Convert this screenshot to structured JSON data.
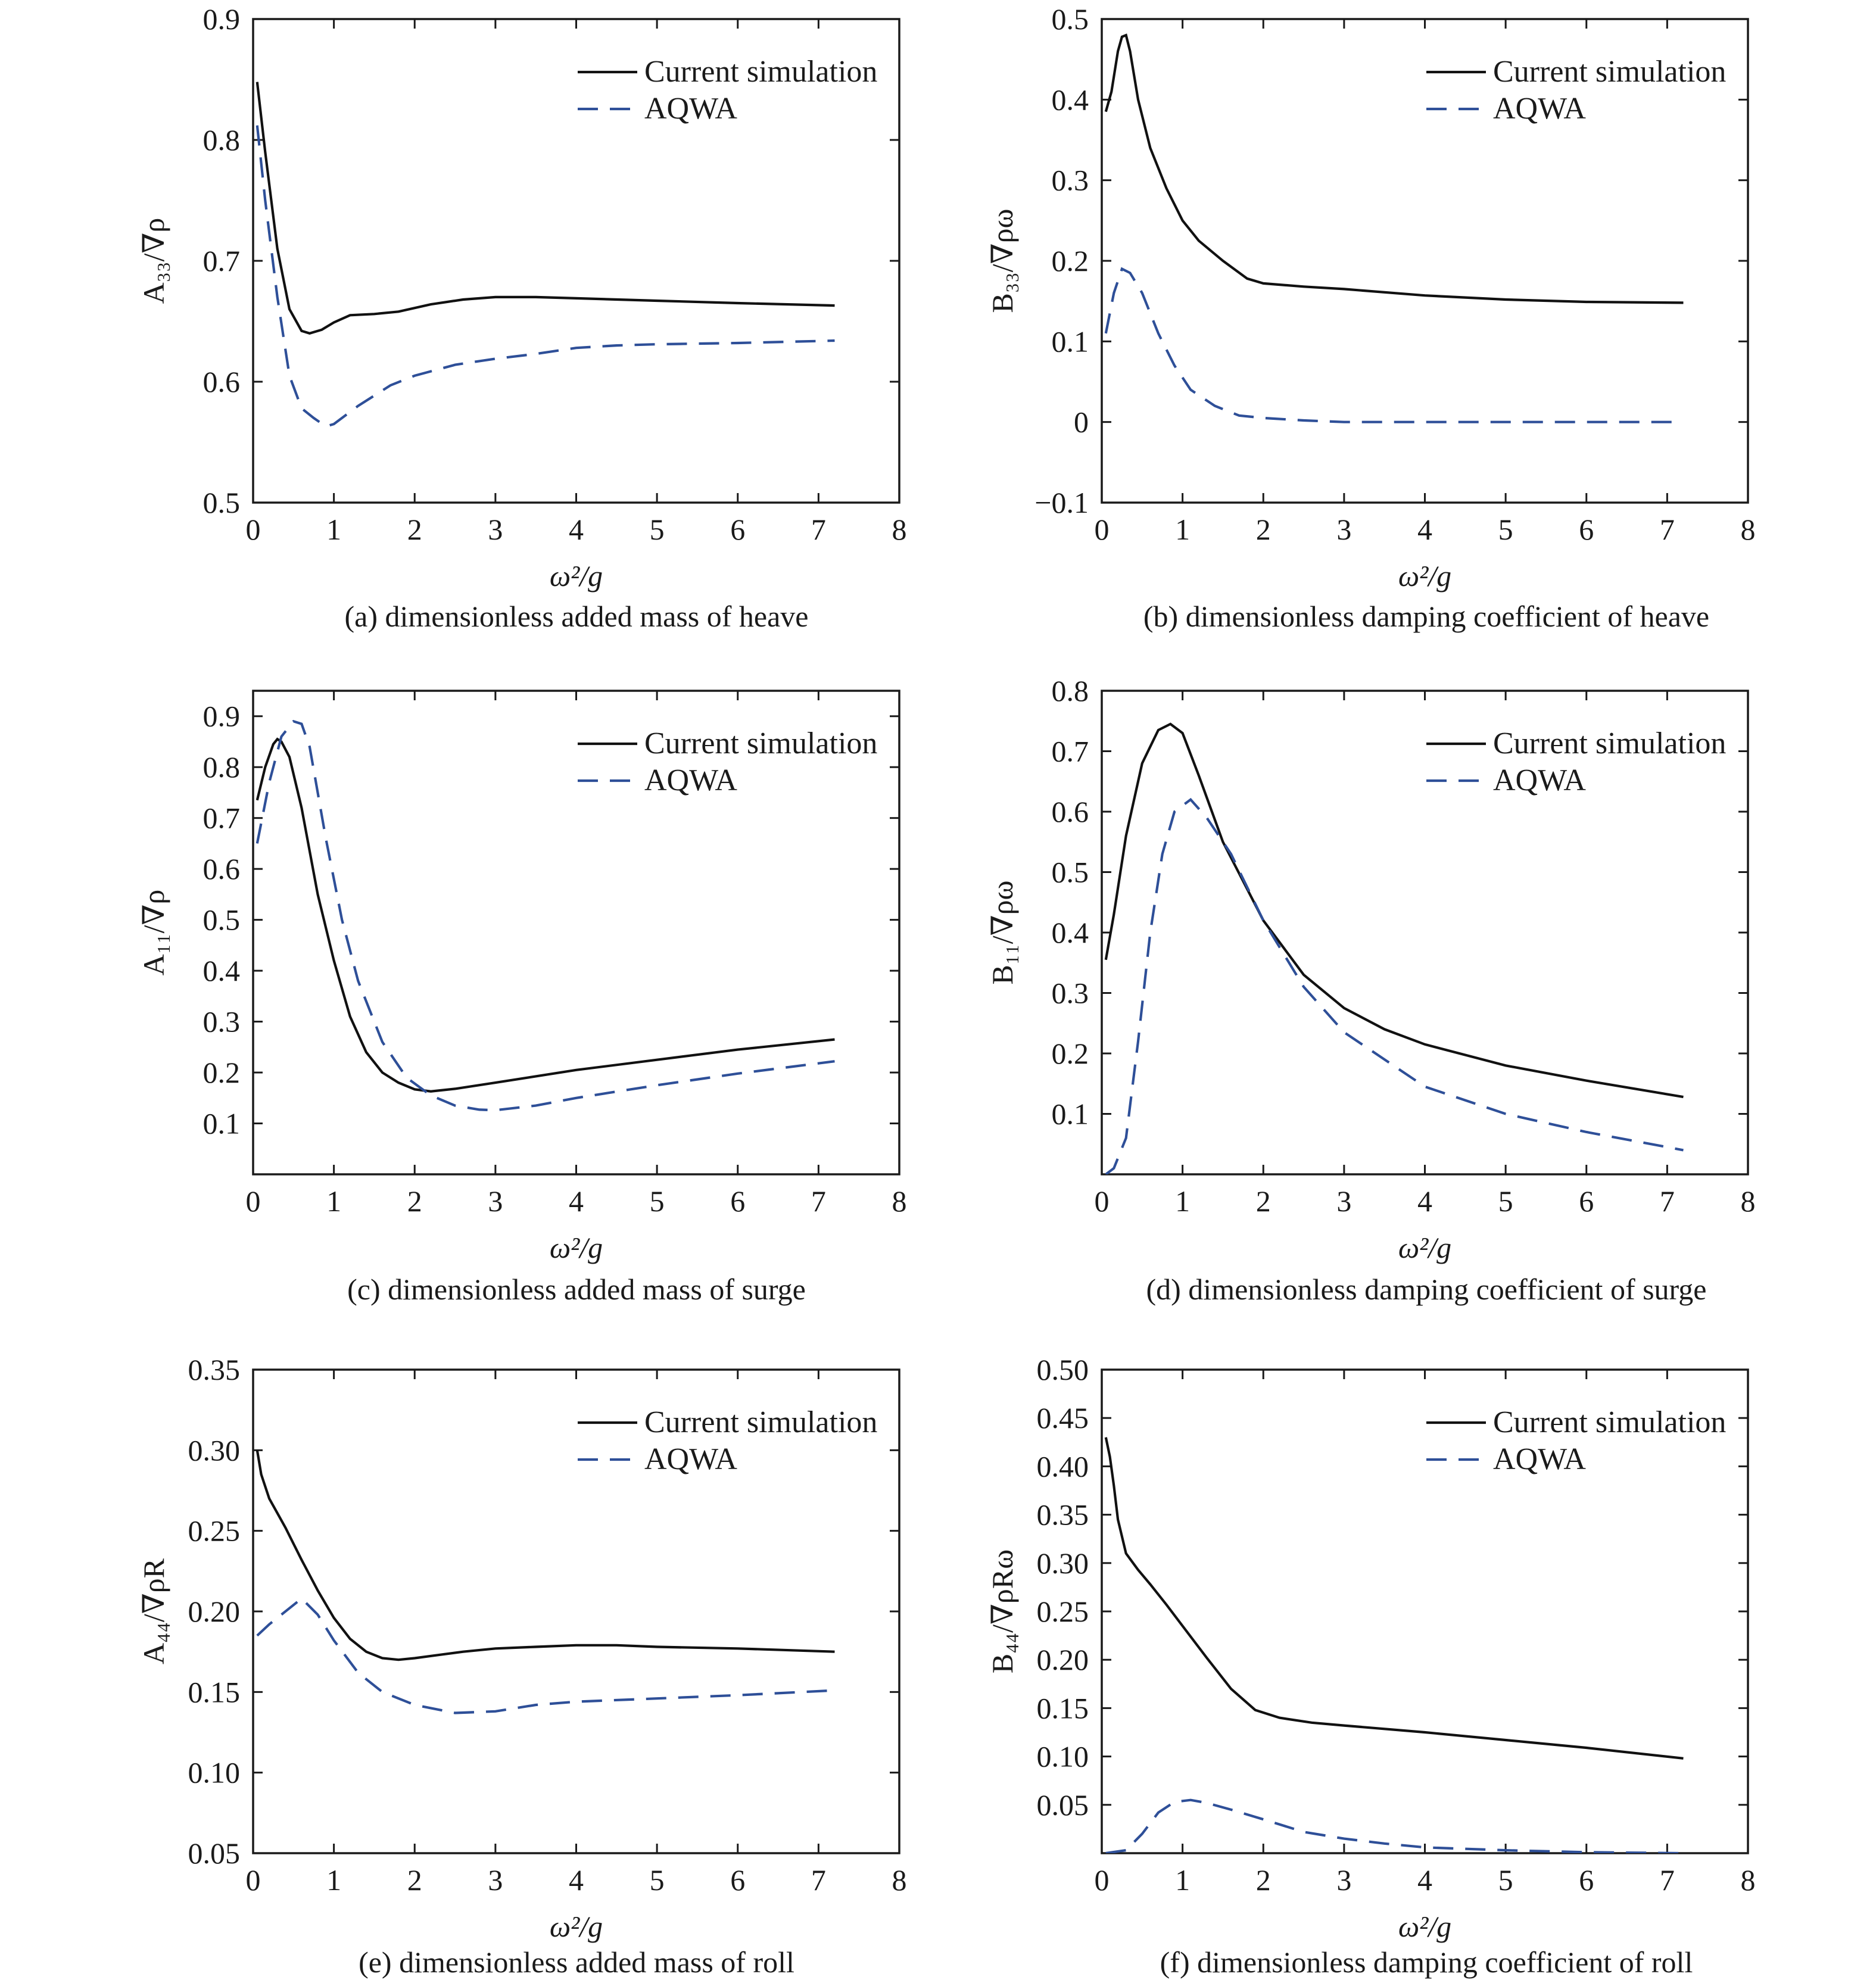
{
  "colors": {
    "current_simulation": "#111111",
    "aqwa": "#2e4f98",
    "axes": "#1a1a1a"
  },
  "chart_data": [
    {
      "id": "a",
      "type": "line",
      "caption": "(a) dimensionless added mass of heave",
      "xlabel": "ω²/g",
      "ylabel": "A₃₃/∇ρ",
      "xlim": [
        0,
        8
      ],
      "ylim": [
        0.5,
        0.9
      ],
      "xticks": [
        "0",
        "1",
        "2",
        "3",
        "4",
        "5",
        "6",
        "7",
        "8"
      ],
      "yticks": [
        "0.5",
        "0.6",
        "0.7",
        "0.8",
        "0.9"
      ],
      "legend_position": "top-right",
      "series": [
        {
          "name": "Current simulation",
          "x": [
            0.05,
            0.15,
            0.3,
            0.45,
            0.6,
            0.7,
            0.85,
            1.0,
            1.2,
            1.5,
            1.8,
            2.2,
            2.6,
            3.0,
            3.5,
            4.0,
            5.0,
            6.0,
            7.2
          ],
          "y": [
            0.848,
            0.79,
            0.71,
            0.66,
            0.642,
            0.64,
            0.643,
            0.649,
            0.655,
            0.656,
            0.658,
            0.664,
            0.668,
            0.67,
            0.67,
            0.669,
            0.667,
            0.665,
            0.663
          ]
        },
        {
          "name": "AQWA",
          "x": [
            0.05,
            0.15,
            0.3,
            0.45,
            0.6,
            0.75,
            0.9,
            1.0,
            1.3,
            1.7,
            2.0,
            2.5,
            3.0,
            3.5,
            4.0,
            4.5,
            5.0,
            6.0,
            7.2
          ],
          "y": [
            0.812,
            0.75,
            0.67,
            0.605,
            0.578,
            0.57,
            0.563,
            0.565,
            0.58,
            0.597,
            0.605,
            0.614,
            0.619,
            0.623,
            0.628,
            0.63,
            0.631,
            0.632,
            0.634
          ]
        }
      ]
    },
    {
      "id": "b",
      "type": "line",
      "caption": "(b) dimensionless damping coefficient of heave",
      "xlabel": "ω²/g",
      "ylabel": "B₃₃/∇ρω",
      "xlim": [
        0,
        8
      ],
      "ylim": [
        -0.1,
        0.5
      ],
      "xticks": [
        "0",
        "1",
        "2",
        "3",
        "4",
        "5",
        "6",
        "7",
        "8"
      ],
      "yticks": [
        "−0.1",
        "0",
        "0.1",
        "0.2",
        "0.3",
        "0.4",
        "0.5"
      ],
      "legend_position": "top-right",
      "series": [
        {
          "name": "Current simulation",
          "x": [
            0.05,
            0.12,
            0.2,
            0.25,
            0.3,
            0.35,
            0.45,
            0.6,
            0.8,
            1.0,
            1.2,
            1.5,
            1.8,
            2.0,
            2.5,
            3.0,
            4.0,
            5.0,
            6.0,
            7.2
          ],
          "y": [
            0.385,
            0.41,
            0.46,
            0.478,
            0.48,
            0.46,
            0.4,
            0.34,
            0.29,
            0.25,
            0.225,
            0.2,
            0.178,
            0.172,
            0.168,
            0.165,
            0.157,
            0.152,
            0.149,
            0.148
          ]
        },
        {
          "name": "AQWA",
          "x": [
            0.05,
            0.15,
            0.25,
            0.35,
            0.5,
            0.7,
            0.9,
            1.1,
            1.4,
            1.7,
            2.0,
            2.5,
            3.0,
            4.0,
            5.0,
            6.0,
            7.2
          ],
          "y": [
            0.11,
            0.16,
            0.19,
            0.185,
            0.16,
            0.11,
            0.07,
            0.04,
            0.02,
            0.008,
            0.005,
            0.002,
            0.0,
            0.0,
            0.0,
            0.0,
            0.0
          ]
        }
      ]
    },
    {
      "id": "c",
      "type": "line",
      "caption": "(c) dimensionless added mass of surge",
      "xlabel": "ω²/g",
      "ylabel": "A₁₁/∇ρ",
      "xlim": [
        0,
        8
      ],
      "ylim": [
        0,
        0.95
      ],
      "xticks": [
        "0",
        "1",
        "2",
        "3",
        "4",
        "5",
        "6",
        "7",
        "8"
      ],
      "yticks": [
        "0.1",
        "0.2",
        "0.3",
        "0.4",
        "0.5",
        "0.6",
        "0.7",
        "0.8",
        "0.9"
      ],
      "legend_position": "top-right",
      "series": [
        {
          "name": "Current simulation",
          "x": [
            0.05,
            0.15,
            0.25,
            0.3,
            0.35,
            0.45,
            0.6,
            0.8,
            1.0,
            1.2,
            1.4,
            1.6,
            1.8,
            2.0,
            2.2,
            2.5,
            3.0,
            4.0,
            5.0,
            6.0,
            7.2
          ],
          "y": [
            0.735,
            0.8,
            0.845,
            0.855,
            0.85,
            0.82,
            0.72,
            0.55,
            0.42,
            0.31,
            0.24,
            0.2,
            0.18,
            0.167,
            0.163,
            0.168,
            0.18,
            0.205,
            0.225,
            0.245,
            0.265
          ]
        },
        {
          "name": "AQWA",
          "x": [
            0.05,
            0.2,
            0.35,
            0.5,
            0.6,
            0.7,
            0.9,
            1.1,
            1.3,
            1.6,
            1.9,
            2.2,
            2.5,
            2.8,
            3.0,
            3.5,
            4.0,
            5.0,
            6.0,
            7.2
          ],
          "y": [
            0.65,
            0.77,
            0.86,
            0.89,
            0.885,
            0.84,
            0.66,
            0.5,
            0.38,
            0.26,
            0.19,
            0.155,
            0.135,
            0.127,
            0.126,
            0.135,
            0.15,
            0.175,
            0.198,
            0.222
          ]
        }
      ]
    },
    {
      "id": "d",
      "type": "line",
      "caption": "(d) dimensionless damping coefficient of surge",
      "xlabel": "ω²/g",
      "ylabel": "B₁₁/∇ρω",
      "xlim": [
        0,
        8
      ],
      "ylim": [
        0,
        0.8
      ],
      "xticks": [
        "0",
        "1",
        "2",
        "3",
        "4",
        "5",
        "6",
        "7",
        "8"
      ],
      "yticks": [
        "0.1",
        "0.2",
        "0.3",
        "0.4",
        "0.5",
        "0.6",
        "0.7",
        "0.8"
      ],
      "legend_position": "top-right",
      "series": [
        {
          "name": "Current simulation",
          "x": [
            0.05,
            0.15,
            0.3,
            0.5,
            0.7,
            0.85,
            1.0,
            1.2,
            1.5,
            2.0,
            2.5,
            3.0,
            3.5,
            4.0,
            5.0,
            6.0,
            7.2
          ],
          "y": [
            0.355,
            0.43,
            0.56,
            0.68,
            0.735,
            0.745,
            0.73,
            0.66,
            0.55,
            0.42,
            0.33,
            0.275,
            0.24,
            0.215,
            0.18,
            0.155,
            0.128
          ]
        },
        {
          "name": "AQWA",
          "x": [
            0.05,
            0.15,
            0.3,
            0.45,
            0.6,
            0.75,
            0.9,
            1.1,
            1.3,
            1.6,
            2.0,
            2.5,
            3.0,
            4.0,
            5.0,
            6.0,
            7.2
          ],
          "y": [
            0.0,
            0.01,
            0.06,
            0.22,
            0.4,
            0.53,
            0.6,
            0.62,
            0.59,
            0.53,
            0.42,
            0.31,
            0.235,
            0.145,
            0.1,
            0.07,
            0.04
          ]
        }
      ]
    },
    {
      "id": "e",
      "type": "line",
      "caption": "(e) dimensionless added mass of roll",
      "xlabel": "ω²/g",
      "ylabel": "A₄₄/∇ρR",
      "xlim": [
        0,
        8
      ],
      "ylim": [
        0.05,
        0.35
      ],
      "xticks": [
        "0",
        "1",
        "2",
        "3",
        "4",
        "5",
        "6",
        "7",
        "8"
      ],
      "yticks": [
        "0.05",
        "0.10",
        "0.15",
        "0.20",
        "0.25",
        "0.30",
        "0.35"
      ],
      "legend_position": "top-right",
      "series": [
        {
          "name": "Current simulation",
          "x": [
            0.05,
            0.1,
            0.2,
            0.4,
            0.6,
            0.8,
            1.0,
            1.2,
            1.4,
            1.6,
            1.8,
            2.0,
            2.3,
            2.6,
            3.0,
            3.5,
            4.0,
            4.5,
            5.0,
            6.0,
            7.2
          ],
          "y": [
            0.3,
            0.285,
            0.27,
            0.252,
            0.232,
            0.213,
            0.196,
            0.183,
            0.175,
            0.171,
            0.17,
            0.171,
            0.173,
            0.175,
            0.177,
            0.178,
            0.179,
            0.179,
            0.178,
            0.177,
            0.175
          ]
        },
        {
          "name": "AQWA",
          "x": [
            0.05,
            0.2,
            0.4,
            0.6,
            0.8,
            1.0,
            1.3,
            1.6,
            2.0,
            2.5,
            3.0,
            3.5,
            4.0,
            5.0,
            6.0,
            7.2
          ],
          "y": [
            0.185,
            0.192,
            0.2,
            0.208,
            0.198,
            0.182,
            0.162,
            0.15,
            0.142,
            0.137,
            0.138,
            0.142,
            0.144,
            0.146,
            0.148,
            0.151
          ]
        }
      ]
    },
    {
      "id": "f",
      "type": "line",
      "caption": "(f) dimensionless damping coefficient of roll",
      "xlabel": "ω²/g",
      "ylabel": "B₄₄/∇ρRω",
      "xlim": [
        0,
        8
      ],
      "ylim": [
        0,
        0.5
      ],
      "xticks": [
        "0",
        "1",
        "2",
        "3",
        "4",
        "5",
        "6",
        "7",
        "8"
      ],
      "yticks": [
        "0.05",
        "0.10",
        "0.15",
        "0.20",
        "0.25",
        "0.30",
        "0.35",
        "0.40",
        "0.45",
        "0.50"
      ],
      "legend_position": "top-right",
      "series": [
        {
          "name": "Current simulation",
          "x": [
            0.05,
            0.1,
            0.15,
            0.2,
            0.3,
            0.45,
            0.6,
            0.8,
            1.0,
            1.3,
            1.6,
            1.9,
            2.2,
            2.6,
            3.0,
            4.0,
            5.0,
            6.0,
            7.2
          ],
          "y": [
            0.43,
            0.41,
            0.38,
            0.345,
            0.31,
            0.293,
            0.278,
            0.257,
            0.235,
            0.202,
            0.17,
            0.148,
            0.14,
            0.135,
            0.132,
            0.125,
            0.117,
            0.109,
            0.098
          ]
        },
        {
          "name": "AQWA",
          "x": [
            0.05,
            0.3,
            0.5,
            0.7,
            0.9,
            1.1,
            1.3,
            1.6,
            2.0,
            2.5,
            3.0,
            3.5,
            4.0,
            5.0,
            6.0,
            7.2
          ],
          "y": [
            0.0,
            0.003,
            0.02,
            0.042,
            0.053,
            0.055,
            0.052,
            0.045,
            0.035,
            0.022,
            0.015,
            0.01,
            0.006,
            0.003,
            0.001,
            0.0
          ]
        }
      ]
    }
  ]
}
